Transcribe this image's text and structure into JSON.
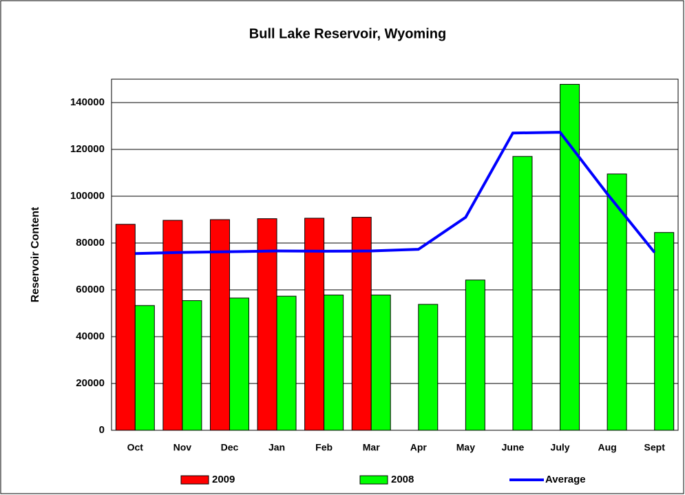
{
  "chart_data": {
    "type": "bar",
    "title": "Bull Lake Reservoir, Wyoming",
    "y_label": "Reservoir Content",
    "categories": [
      "Oct",
      "Nov",
      "Dec",
      "Jan",
      "Feb",
      "Mar",
      "Apr",
      "May",
      "June",
      "July",
      "Aug",
      "Sept"
    ],
    "series": [
      {
        "name": "2009",
        "type": "bar",
        "color": "#ff0000",
        "values": [
          88000,
          89700,
          90000,
          90400,
          90600,
          91000,
          null,
          null,
          null,
          null,
          null,
          null
        ]
      },
      {
        "name": "2008",
        "type": "bar",
        "color": "#00ff00",
        "values": [
          53300,
          55400,
          56500,
          57300,
          57800,
          57800,
          53800,
          64200,
          117000,
          147800,
          109500,
          84500
        ]
      },
      {
        "name": "Average",
        "type": "line",
        "color": "#0000ff",
        "values": [
          75500,
          76000,
          76300,
          76600,
          76500,
          76600,
          77300,
          91000,
          127000,
          127300,
          101000,
          76000
        ]
      }
    ],
    "ylim": [
      0,
      150000
    ],
    "yticks": [
      0,
      20000,
      40000,
      60000,
      80000,
      100000,
      120000,
      140000
    ],
    "grid": true,
    "legend": "bottom"
  }
}
